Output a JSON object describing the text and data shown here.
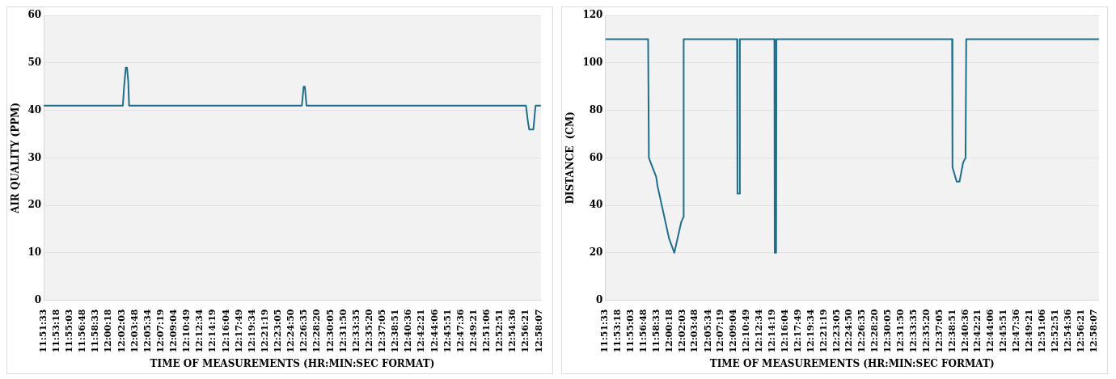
{
  "chart_data": [
    {
      "type": "line",
      "xlabel": "TIME OF MEASUREMENTS (HR:MIN:SEC FORMAT)",
      "ylabel": "AIR QUALITY (PPM)",
      "color": "#1f6e8c",
      "marker": "none",
      "line_style": "solid",
      "grid": "y",
      "legend": false,
      "x": [
        11.8592,
        12.0363,
        12.0391,
        12.0429,
        12.0457,
        12.0485,
        12.0503,
        12.4371,
        12.4411,
        12.4439,
        12.4476,
        12.939,
        12.9428,
        12.9461,
        12.9555,
        12.9604,
        12.9724
      ],
      "values": [
        41,
        41,
        45,
        49,
        49,
        46,
        41,
        41,
        45,
        45,
        41,
        41,
        38,
        36,
        36,
        41,
        41
      ],
      "xlim": [
        11.8592,
        12.9724
      ],
      "ylim": [
        0,
        60
      ],
      "yticks": [
        0,
        10,
        20,
        30,
        40,
        50,
        60
      ],
      "xticks": [
        {
          "value": 11.8592,
          "label": "11:51:33"
        },
        {
          "value": 11.8883,
          "label": "11:53:18"
        },
        {
          "value": 11.9175,
          "label": "11:55:03"
        },
        {
          "value": 11.9467,
          "label": "11:56:48"
        },
        {
          "value": 11.9758,
          "label": "11:58:33"
        },
        {
          "value": 12.005,
          "label": "12:00:18"
        },
        {
          "value": 12.0342,
          "label": "12:02:03"
        },
        {
          "value": 12.0633,
          "label": "12:03:48"
        },
        {
          "value": 12.0928,
          "label": "12:05:34"
        },
        {
          "value": 12.1219,
          "label": "12:07:19"
        },
        {
          "value": 12.1511,
          "label": "12:09:04"
        },
        {
          "value": 12.1803,
          "label": "12:10:49"
        },
        {
          "value": 12.2094,
          "label": "12:12:34"
        },
        {
          "value": 12.2386,
          "label": "12:14:19"
        },
        {
          "value": 12.2678,
          "label": "12:16:04"
        },
        {
          "value": 12.2969,
          "label": "12:17:49"
        },
        {
          "value": 12.3261,
          "label": "12:19:34"
        },
        {
          "value": 12.3553,
          "label": "12:21:19"
        },
        {
          "value": 12.3847,
          "label": "12:23:05"
        },
        {
          "value": 12.4139,
          "label": "12:24:50"
        },
        {
          "value": 12.4431,
          "label": "12:26:35"
        },
        {
          "value": 12.4722,
          "label": "12:28:20"
        },
        {
          "value": 12.5014,
          "label": "12:30:05"
        },
        {
          "value": 12.5306,
          "label": "12:31:50"
        },
        {
          "value": 12.5597,
          "label": "12:33:35"
        },
        {
          "value": 12.5889,
          "label": "12:35:20"
        },
        {
          "value": 12.6181,
          "label": "12:37:05"
        },
        {
          "value": 12.6475,
          "label": "12:38:51"
        },
        {
          "value": 12.6767,
          "label": "12:40:36"
        },
        {
          "value": 12.7058,
          "label": "12:42:21"
        },
        {
          "value": 12.735,
          "label": "12:44:06"
        },
        {
          "value": 12.7642,
          "label": "12:45:51"
        },
        {
          "value": 12.7933,
          "label": "12:47:36"
        },
        {
          "value": 12.8225,
          "label": "12:49:21"
        },
        {
          "value": 12.8517,
          "label": "12:51:06"
        },
        {
          "value": 12.8808,
          "label": "12:52:51"
        },
        {
          "value": 12.91,
          "label": "12:54:36"
        },
        {
          "value": 12.9392,
          "label": "12:56:21"
        },
        {
          "value": 12.9686,
          "label": "12:58:07"
        }
      ]
    },
    {
      "type": "line",
      "xlabel": "TIME OF MEASUREMENTS (HR:MIN:SEC FORMAT)",
      "ylabel": "DISTANCE  (CM)",
      "color": "#1f6e8c",
      "marker": "none",
      "line_style": "solid",
      "grid": "y",
      "legend": false,
      "x": [
        11.8592,
        11.9565,
        11.9582,
        11.9748,
        11.978,
        12.0041,
        12.016,
        12.0317,
        12.0365,
        12.0372,
        12.1584,
        12.1593,
        12.1639,
        12.1648,
        12.2432,
        12.2439,
        12.2471,
        12.2478,
        12.6466,
        12.6475,
        12.657,
        12.6635,
        12.6716,
        12.6771,
        12.6787,
        12.98
      ],
      "values": [
        110,
        110,
        60,
        52,
        48,
        26,
        20,
        33,
        35,
        110,
        110,
        45,
        45,
        110,
        110,
        20,
        20,
        110,
        110,
        56,
        50,
        50,
        58,
        60,
        110,
        110
      ],
      "xlim": [
        11.8592,
        12.98
      ],
      "ylim": [
        0,
        120
      ],
      "yticks": [
        0,
        20,
        40,
        60,
        80,
        100,
        120
      ],
      "xticks": [
        {
          "value": 11.8592,
          "label": "11:51:33"
        },
        {
          "value": 11.8883,
          "label": "11:53:18"
        },
        {
          "value": 11.9175,
          "label": "11:55:03"
        },
        {
          "value": 11.9467,
          "label": "11:56:48"
        },
        {
          "value": 11.9758,
          "label": "11:58:33"
        },
        {
          "value": 12.005,
          "label": "12:00:18"
        },
        {
          "value": 12.0342,
          "label": "12:02:03"
        },
        {
          "value": 12.0633,
          "label": "12:03:48"
        },
        {
          "value": 12.0928,
          "label": "12:05:34"
        },
        {
          "value": 12.1219,
          "label": "12:07:19"
        },
        {
          "value": 12.1511,
          "label": "12:09:04"
        },
        {
          "value": 12.1803,
          "label": "12:10:49"
        },
        {
          "value": 12.2094,
          "label": "12:12:34"
        },
        {
          "value": 12.2386,
          "label": "12:14:19"
        },
        {
          "value": 12.2678,
          "label": "12:16:04"
        },
        {
          "value": 12.2969,
          "label": "12:17:49"
        },
        {
          "value": 12.3261,
          "label": "12:19:34"
        },
        {
          "value": 12.3553,
          "label": "12:21:19"
        },
        {
          "value": 12.3847,
          "label": "12:23:05"
        },
        {
          "value": 12.4139,
          "label": "12:24:50"
        },
        {
          "value": 12.4431,
          "label": "12:26:35"
        },
        {
          "value": 12.4722,
          "label": "12:28:20"
        },
        {
          "value": 12.5014,
          "label": "12:30:05"
        },
        {
          "value": 12.5306,
          "label": "12:31:50"
        },
        {
          "value": 12.5597,
          "label": "12:33:35"
        },
        {
          "value": 12.5889,
          "label": "12:35:20"
        },
        {
          "value": 12.6181,
          "label": "12:37:05"
        },
        {
          "value": 12.6475,
          "label": "12:38:51"
        },
        {
          "value": 12.6767,
          "label": "12:40:36"
        },
        {
          "value": 12.7058,
          "label": "12:42:21"
        },
        {
          "value": 12.735,
          "label": "12:44:06"
        },
        {
          "value": 12.7642,
          "label": "12:45:51"
        },
        {
          "value": 12.7933,
          "label": "12:47:36"
        },
        {
          "value": 12.8225,
          "label": "12:49:21"
        },
        {
          "value": 12.8517,
          "label": "12:51:06"
        },
        {
          "value": 12.8808,
          "label": "12:52:51"
        },
        {
          "value": 12.91,
          "label": "12:54:36"
        },
        {
          "value": 12.9392,
          "label": "12:56:21"
        },
        {
          "value": 12.9686,
          "label": "12:58:07"
        }
      ]
    }
  ]
}
